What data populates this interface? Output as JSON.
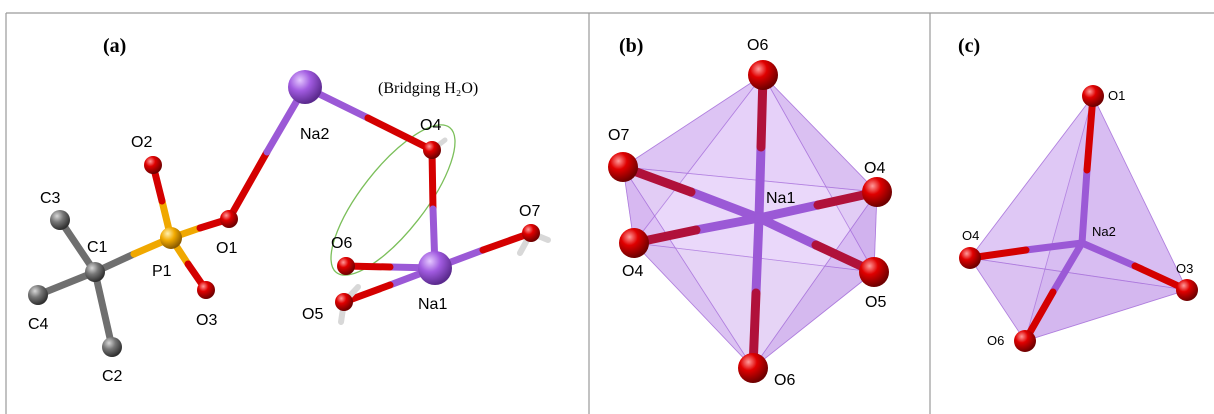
{
  "panels": [
    {
      "id": "a",
      "label": "(a)",
      "note": "(Bridging H₂O)",
      "atom_labels": {
        "Na2": "Na2",
        "O4": "O4",
        "O2": "O2",
        "C3": "C3",
        "C1": "C1",
        "P1": "P1",
        "O1": "O1",
        "O6": "O6",
        "O7": "O7",
        "C4": "C4",
        "O3": "O3",
        "O5": "O5",
        "Na1": "Na1",
        "C2": "C2"
      }
    },
    {
      "id": "b",
      "label": "(b)",
      "atom_labels": {
        "O6top": "O6",
        "O7": "O7",
        "O4": "O4",
        "Na1": "Na1",
        "O4left": "O4",
        "O5": "O5",
        "O6bottom": "O6"
      }
    },
    {
      "id": "c",
      "label": "(c)",
      "atom_labels": {
        "O1": "O1",
        "O4": "O4",
        "Na2": "Na2",
        "O3": "O3",
        "O6": "O6"
      }
    }
  ],
  "colors": {
    "sodium": "#9b59d6",
    "oxygen": "#d40000",
    "phosphorus": "#f0a800",
    "carbon": "#6f6f6f",
    "hydrogen": "#d8d8d8",
    "polyhedron": "#b57fe6",
    "highlight_ellipse": "#7bbf5a",
    "border": "#9a9a9a"
  }
}
